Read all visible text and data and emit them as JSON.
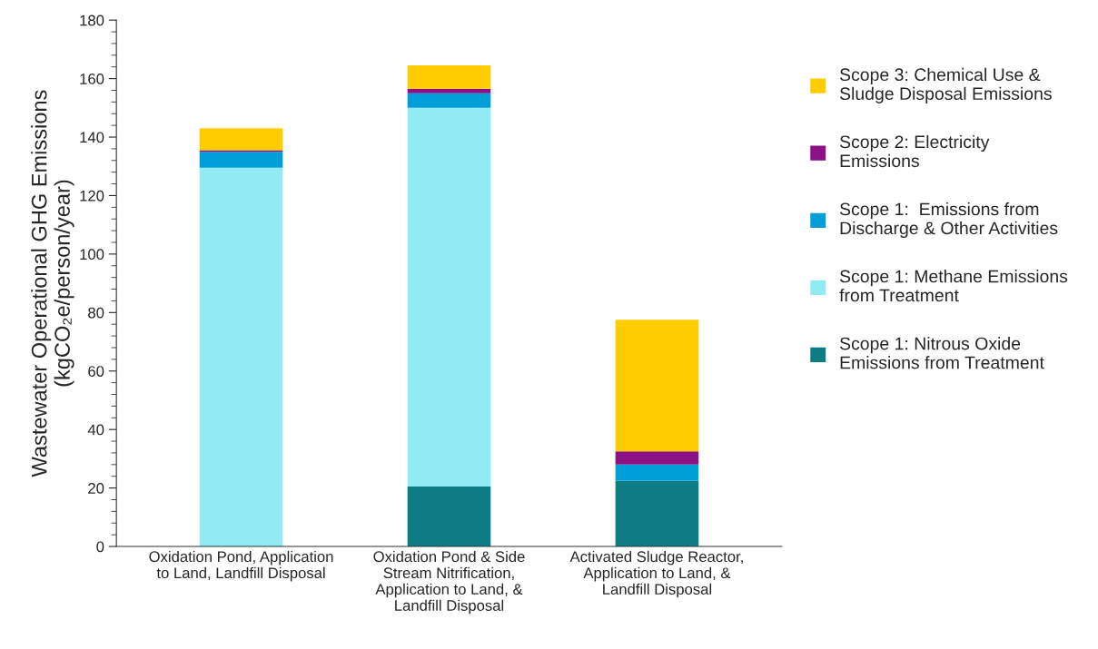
{
  "chart_data": {
    "type": "bar",
    "stacked": true,
    "ylabel": "Wastewater Operational GHG Emissions\n(kgCO₂e/person/year)",
    "categories": [
      "Oxidation Pond, Application\nto Land, Landfill Disposal",
      "Oxidation Pond & Side\nStream Nitrification,\nApplication to Land, &\nLandfill Disposal",
      "Activated Sludge Reactor,\nApplication to Land, &\nLandfill Disposal"
    ],
    "series": [
      {
        "name": "Scope 1: Nitrous Oxide\nEmissions from Treatment",
        "color": "#0e7c84",
        "values": [
          0,
          20.5,
          22.5
        ]
      },
      {
        "name": "Scope 1: Methane Emissions\nfrom Treatment",
        "color": "#91ebf2",
        "values": [
          129.5,
          129.5,
          0
        ]
      },
      {
        "name": "Scope 1:  Emissions from\nDischarge & Other Activities",
        "color": "#009fda",
        "values": [
          5.5,
          5,
          5.5
        ]
      },
      {
        "name": "Scope 2: Electricity\nEmissions",
        "color": "#8b1185",
        "values": [
          0.5,
          1.5,
          4.5
        ]
      },
      {
        "name": "Scope 3: Chemical Use &\nSludge Disposal Emissions",
        "color": "#ffcc00",
        "values": [
          7.5,
          8,
          45
        ]
      }
    ],
    "ylim": [
      0,
      180
    ],
    "yticks": [
      0,
      20,
      40,
      60,
      80,
      100,
      120,
      140,
      160,
      180
    ],
    "grid": false,
    "legend": "right"
  }
}
